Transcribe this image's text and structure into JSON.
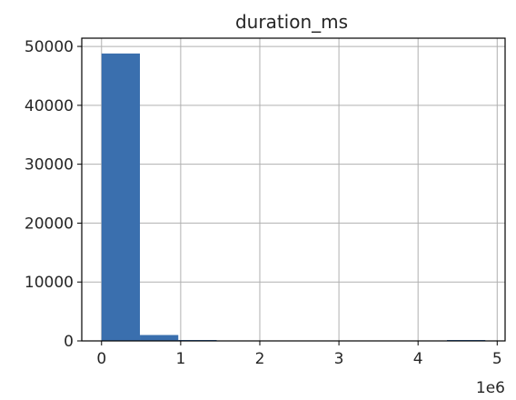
{
  "chart_data": {
    "type": "bar",
    "title": "duration_ms",
    "xlabel": "",
    "ylabel": "",
    "x_offset_text": "1e6",
    "xlim": [
      -0.25,
      5.1
    ],
    "ylim": [
      0,
      51400
    ],
    "x_ticks": [
      0,
      1,
      2,
      3,
      4,
      5
    ],
    "x_tick_labels": [
      "0",
      "1",
      "2",
      "3",
      "4",
      "5"
    ],
    "y_ticks": [
      0,
      10000,
      20000,
      30000,
      40000,
      50000
    ],
    "y_tick_labels": [
      "0",
      "10000",
      "20000",
      "30000",
      "40000",
      "50000"
    ],
    "grid": true,
    "bins": [
      {
        "x0": 0.0,
        "x1": 0.485,
        "count": 48800
      },
      {
        "x0": 0.485,
        "x1": 0.97,
        "count": 1000
      },
      {
        "x0": 0.97,
        "x1": 1.455,
        "count": 10
      },
      {
        "x0": 1.455,
        "x1": 1.94,
        "count": 0
      },
      {
        "x0": 1.94,
        "x1": 2.425,
        "count": 0
      },
      {
        "x0": 2.425,
        "x1": 2.91,
        "count": 0
      },
      {
        "x0": 2.91,
        "x1": 3.395,
        "count": 0
      },
      {
        "x0": 3.395,
        "x1": 3.88,
        "count": 0
      },
      {
        "x0": 3.88,
        "x1": 4.365,
        "count": 0
      },
      {
        "x0": 4.365,
        "x1": 4.85,
        "count": 1
      }
    ],
    "bar_color": "#3a6fae",
    "grid_color": "#b0b0b0"
  }
}
